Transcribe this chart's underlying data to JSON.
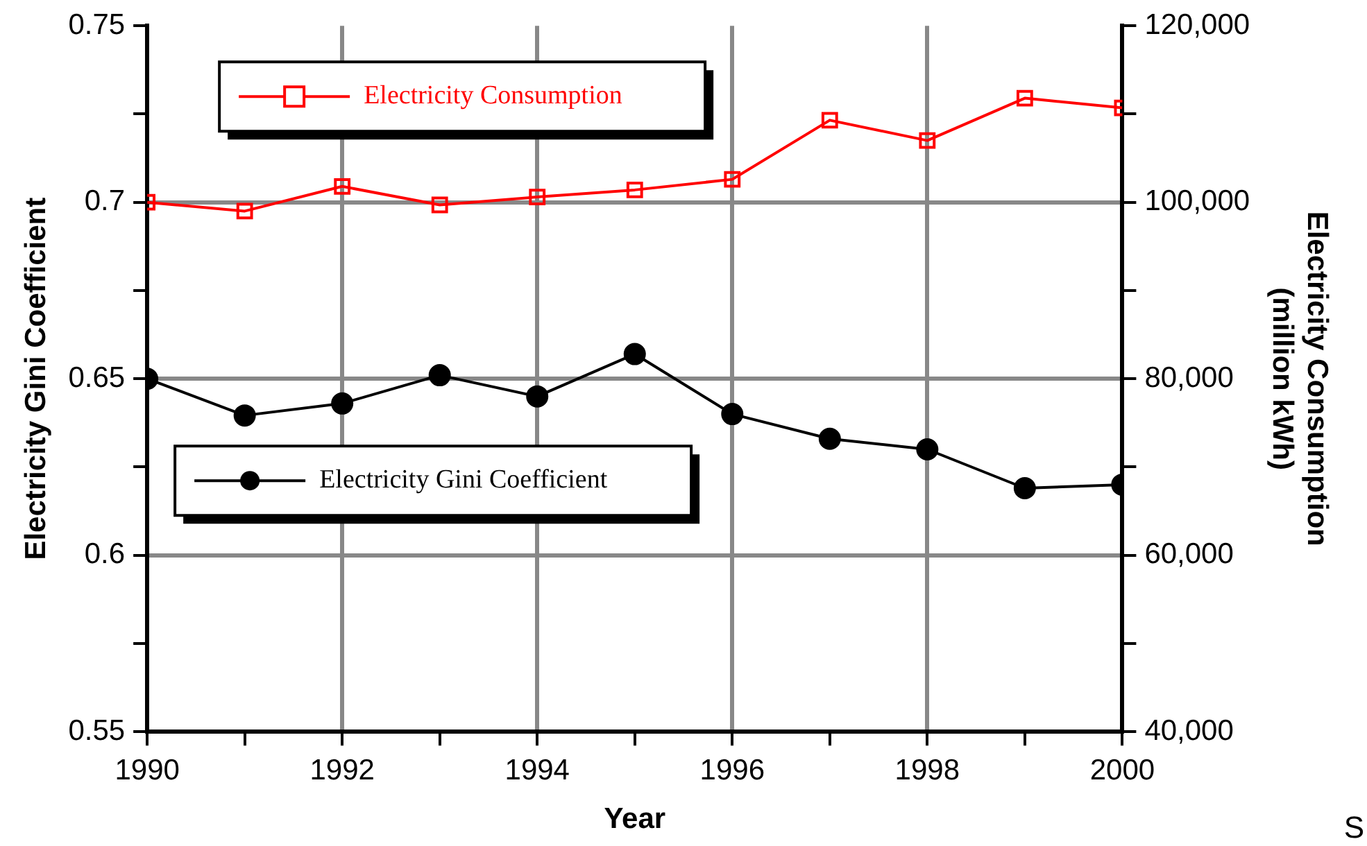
{
  "chart_data": {
    "type": "line",
    "xlabel": "Year",
    "ylabel": "Electricity Gini Coefficient",
    "y2label": "Electricity Consumption (million kWh)",
    "x": [
      1990,
      1991,
      1992,
      1993,
      1994,
      1995,
      1996,
      1997,
      1998,
      1999,
      2000
    ],
    "xlim": [
      1990,
      2000
    ],
    "xticks": [
      1990,
      {
        "value": 1991,
        "label": null
      },
      1992,
      {
        "value": 1993,
        "label": null
      },
      1994,
      {
        "value": 1995,
        "label": null
      },
      1996,
      {
        "value": 1997,
        "label": null
      },
      1998,
      {
        "value": 1999,
        "label": null
      },
      2000
    ],
    "ylim": [
      0.55,
      0.75
    ],
    "yticks": [
      {
        "value": 0.55,
        "label": "0.55"
      },
      {
        "value": 0.575,
        "label": null
      },
      {
        "value": 0.6,
        "label": "0.6"
      },
      {
        "value": 0.625,
        "label": null
      },
      {
        "value": 0.65,
        "label": "0.65"
      },
      {
        "value": 0.675,
        "label": null
      },
      {
        "value": 0.7,
        "label": "0.7"
      },
      {
        "value": 0.725,
        "label": null
      },
      {
        "value": 0.75,
        "label": "0.75"
      }
    ],
    "y2lim": [
      40000,
      120000
    ],
    "y2ticks": [
      {
        "value": 40000,
        "label": "40,000"
      },
      {
        "value": 50000,
        "label": null
      },
      {
        "value": 60000,
        "label": "60,000"
      },
      {
        "value": 70000,
        "label": null
      },
      {
        "value": 80000,
        "label": "80,000"
      },
      {
        "value": 90000,
        "label": null
      },
      {
        "value": 100000,
        "label": "100,000"
      },
      {
        "value": 110000,
        "label": null
      },
      {
        "value": 120000,
        "label": "120,000"
      }
    ],
    "series": [
      {
        "name": "Electricity Consumption",
        "color": "#ff0000",
        "axis": "y2",
        "marker": "square",
        "values": [
          100000,
          99000,
          101800,
          99700,
          100600,
          101400,
          102600,
          109300,
          107000,
          111800,
          110700
        ]
      },
      {
        "name": "Electricity Gini Coefficient",
        "color": "#000000",
        "axis": "y",
        "marker": "circle",
        "values": [
          0.65,
          0.6396,
          0.643,
          0.651,
          0.645,
          0.657,
          0.64,
          0.633,
          0.63,
          0.619,
          0.62
        ]
      }
    ],
    "grid": true,
    "legend": "top left",
    "line_style": "solid",
    "annotations": [
      "S"
    ]
  }
}
